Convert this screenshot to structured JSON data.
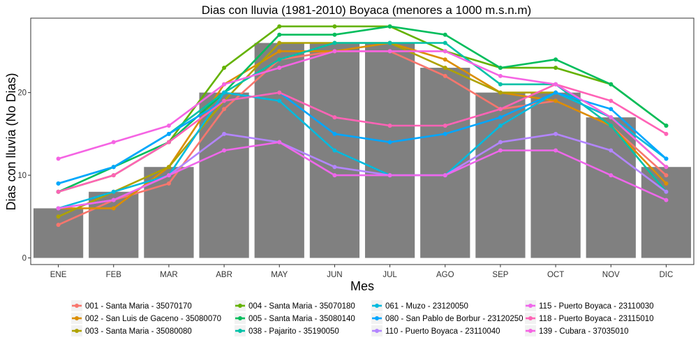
{
  "chart_data": {
    "type": "bar",
    "title": "Dias con lluvia (1981-2010) Boyaca (menores a 1000 m.s.n.m)",
    "xlabel": "Mes",
    "ylabel": "Dias con lluvia (No Dias)",
    "ylim": [
      -0.8,
      29
    ],
    "yticks": [
      0,
      10,
      20
    ],
    "grid": false,
    "legend_position": "bottom",
    "categories": [
      "ENE",
      "FEB",
      "MAR",
      "ABR",
      "MAY",
      "JUN",
      "JUL",
      "AGO",
      "SEP",
      "OCT",
      "NOV",
      "DIC"
    ],
    "bars": {
      "color": "#808080",
      "values": [
        6,
        8,
        11,
        20,
        26,
        26,
        26,
        23,
        20,
        20,
        17,
        11
      ]
    },
    "series": [
      {
        "name": "001 - Santa Maria - 35070170",
        "color": "#F8766D",
        "values": [
          4,
          7,
          9,
          18,
          24,
          25,
          25,
          22,
          18,
          19,
          16,
          10
        ]
      },
      {
        "name": "002 - San Luis de Gaceno - 35080070",
        "color": "#DB8E00",
        "values": [
          6,
          6,
          11,
          21,
          25,
          25,
          26,
          24,
          20,
          19,
          16,
          9
        ]
      },
      {
        "name": "003 - Santa Maria - 35080080",
        "color": "#AEA200",
        "values": [
          5,
          8,
          11,
          19,
          26,
          26,
          26,
          23,
          20,
          20,
          17,
          11
        ]
      },
      {
        "name": "004 - Santa Maria - 35070180",
        "color": "#64B200",
        "values": [
          8,
          10,
          14,
          23,
          28,
          28,
          28,
          25,
          23,
          23,
          21,
          16
        ]
      },
      {
        "name": "005 - Santa Maria - 35080140",
        "color": "#00BD5C",
        "values": [
          8,
          11,
          14,
          20,
          27,
          27,
          28,
          27,
          23,
          24,
          21,
          16
        ]
      },
      {
        "name": "038 - Pajarito - 35190050",
        "color": "#00C1A7",
        "values": [
          9,
          11,
          15,
          20,
          24,
          26,
          26,
          26,
          21,
          21,
          16,
          8
        ]
      },
      {
        "name": "061 - Muzo - 23120050",
        "color": "#00BADE",
        "values": [
          6,
          8,
          10,
          20,
          19,
          13,
          10,
          10,
          16,
          20,
          17,
          12
        ]
      },
      {
        "name": "080 - San Pablo de Borbur - 23120250",
        "color": "#00A6FF",
        "values": [
          9,
          11,
          15,
          19,
          20,
          15,
          14,
          15,
          17,
          20,
          18,
          12
        ]
      },
      {
        "name": "110 - Puerto Boyaca - 23110040",
        "color": "#B385FF",
        "values": [
          6,
          7,
          10,
          15,
          14,
          11,
          10,
          10,
          14,
          15,
          13,
          8
        ]
      },
      {
        "name": "115 - Puerto Boyaca - 23110030",
        "color": "#EF67EB",
        "values": [
          6,
          7,
          10,
          13,
          14,
          10,
          10,
          10,
          13,
          13,
          10,
          7
        ]
      },
      {
        "name": "118 - Puerto Boyaca - 23115010",
        "color": "#FF63B6",
        "values": [
          8,
          10,
          14,
          19,
          20,
          17,
          16,
          16,
          18,
          21,
          19,
          15
        ]
      },
      {
        "name": "139 - Cubara - 37035010",
        "color": "#F564E3",
        "values": [
          12,
          14,
          16,
          21,
          23,
          25,
          25,
          25,
          22,
          21,
          17,
          11
        ]
      }
    ]
  }
}
